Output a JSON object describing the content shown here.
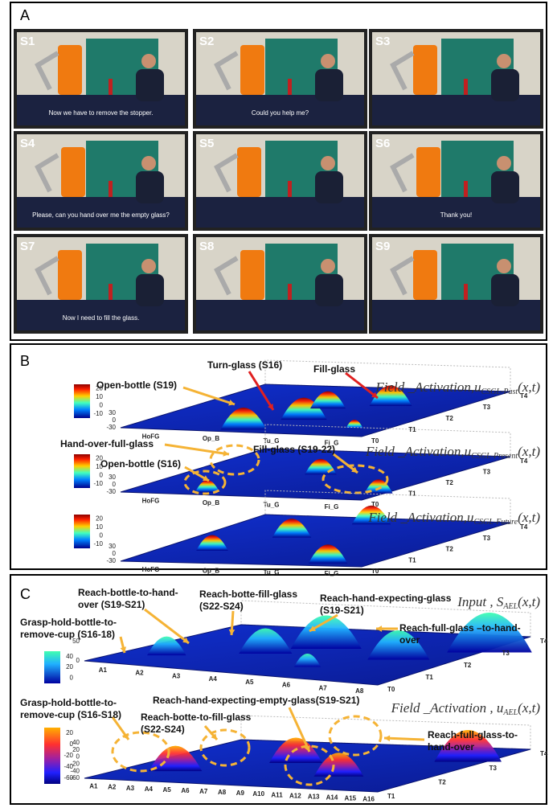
{
  "panels": {
    "A": {
      "label": "A",
      "frames": [
        {
          "label": "S1",
          "caption": "Now we have to remove the stopper."
        },
        {
          "label": "S2",
          "caption": "Could you help me?"
        },
        {
          "label": "S3"
        },
        {
          "label": "S4",
          "caption": "Please, can you hand over me the empty glass?"
        },
        {
          "label": "S5"
        },
        {
          "label": "S6",
          "caption": "Thank you!"
        },
        {
          "label": "S7",
          "caption": "Now I need to fill the glass."
        },
        {
          "label": "S8"
        },
        {
          "label": "S9"
        }
      ]
    },
    "B": {
      "label": "B",
      "plots": [
        {
          "title": {
            "prefix": "Field _Activation,",
            "symbol": "u",
            "subscript": "CSGL-Past",
            "suffix": "(x,t)"
          },
          "colorbar_ticks": [
            20,
            10,
            0,
            -10
          ],
          "z_ticks": [
            30,
            0,
            -30
          ],
          "x_labels": [
            "HoFG",
            "Op_B",
            "Tu_G",
            "Fi_G"
          ],
          "t_labels": [
            "T0",
            "T1",
            "T2",
            "T3",
            "T4"
          ],
          "annotations": [
            {
              "text": [
                "Open-bottle (S19)"
              ]
            },
            {
              "text": [
                "Turn-glass (S16)"
              ]
            },
            {
              "text": [
                "Fill-glass"
              ]
            }
          ]
        },
        {
          "title": {
            "prefix": "Field _Activation,",
            "symbol": "u",
            "subscript": "CSGL-Present",
            "suffix": "(x,t)"
          },
          "colorbar_ticks": [
            20,
            10,
            0,
            -10
          ],
          "z_ticks": [
            30,
            0,
            -30
          ],
          "x_labels": [
            "HoFG",
            "Op_B",
            "Tu_G",
            "Fi_G"
          ],
          "t_labels": [
            "T0",
            "T1",
            "T2",
            "T3",
            "T4"
          ],
          "annotations": [
            {
              "text": [
                "Hand-over-full-glass"
              ]
            },
            {
              "text": [
                "Open-bottle (S16)"
              ]
            },
            {
              "text": [
                "Fill-glass (S19-22)"
              ]
            }
          ]
        },
        {
          "title": {
            "prefix": "Field _Activation,",
            "symbol": "u",
            "subscript": "CSGL-Future",
            "suffix": "(x,t)"
          },
          "colorbar_ticks": [
            20,
            10,
            0,
            -10
          ],
          "z_ticks": [
            30,
            0,
            -30
          ],
          "x_labels": [
            "HoFG",
            "Op_B",
            "Tu_G",
            "Fi_G"
          ],
          "t_labels": [
            "T0",
            "T1",
            "T2",
            "T3",
            "T4"
          ],
          "annotations": []
        }
      ]
    },
    "C": {
      "label": "C",
      "plots": [
        {
          "title": {
            "prefix": "Input , ",
            "symbol": "S",
            "subscript": "AEL",
            "suffix": "(x,t)"
          },
          "colorbar_ticks": [
            40,
            20,
            0
          ],
          "z_ticks": [
            50,
            0
          ],
          "x_labels": [
            "A1",
            "A2",
            "A3",
            "A4",
            "A5",
            "A6",
            "A7",
            "A8"
          ],
          "t_labels": [
            "T0",
            "T1",
            "T2",
            "T3",
            "T4"
          ],
          "annotations": [
            {
              "text": [
                "Grasp-hold-bottle-to-",
                "remove-cup (S16-18)"
              ]
            },
            {
              "text": [
                "Reach-bottle-to-hand-",
                "over (S19-S21)"
              ]
            },
            {
              "text": [
                "Reach-botte-fill-glass",
                "(S22-S24)"
              ]
            },
            {
              "text": [
                "Reach-hand-expecting-glass",
                "(S19-S21)"
              ]
            },
            {
              "text": [
                "Reach-full-glass –to-hand-",
                "over"
              ]
            }
          ]
        },
        {
          "title": {
            "prefix": "Field _Activation , ",
            "symbol": "u",
            "subscript": "AEL",
            "suffix": "(x,t)"
          },
          "colorbar_ticks": [
            20,
            0,
            -20,
            -40,
            -60
          ],
          "z_ticks": [
            40,
            20,
            0,
            -20,
            -40,
            -60
          ],
          "x_labels": [
            "A1",
            "A2",
            "A3",
            "A4",
            "A5",
            "A6",
            "A7",
            "A8",
            "A9",
            "A10",
            "A11",
            "A12",
            "A13",
            "A14",
            "A15",
            "A16"
          ],
          "t_labels": [
            "T1",
            "T2",
            "T3",
            "T4"
          ],
          "annotations": [
            {
              "text": [
                "Grasp-hold-bottle-to-",
                "remove-cup (S16-S18)"
              ]
            },
            {
              "text": [
                "Reach-botte-to-fill-glass",
                "(S22-S24)"
              ]
            },
            {
              "text": [
                "Reach-hand-expecting-empty-glass(S19-S21)"
              ]
            },
            {
              "text": [
                "Reach-full-glass-to-",
                "hand-over"
              ]
            }
          ]
        }
      ]
    }
  }
}
